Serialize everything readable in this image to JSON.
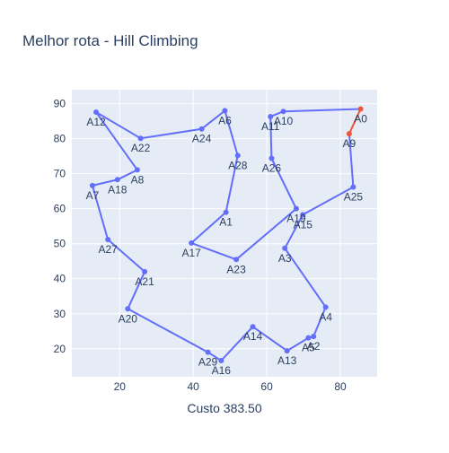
{
  "chart_data": {
    "type": "line",
    "title": "Melhor rota - Hill Climbing",
    "xlabel": "Custo 383.50",
    "ylabel": "",
    "xlim": [
      7,
      90
    ],
    "ylim": [
      12,
      94
    ],
    "x_ticks": [
      20,
      40,
      60,
      80
    ],
    "y_ticks": [
      20,
      30,
      40,
      50,
      60,
      70,
      80,
      90
    ],
    "grid": true,
    "colors": {
      "route": "#636efa",
      "closing_edge": "#ef553b",
      "plot_bg": "#e5ecf6",
      "grid": "#ffffff",
      "text": "#2a3f5f"
    },
    "points": [
      {
        "label": "A0",
        "x": 85.5,
        "y": 88.5
      },
      {
        "label": "A10",
        "x": 64.5,
        "y": 87.8
      },
      {
        "label": "A11",
        "x": 61.0,
        "y": 86.3
      },
      {
        "label": "A26",
        "x": 61.3,
        "y": 74.4
      },
      {
        "label": "A19",
        "x": 68.0,
        "y": 60.0
      },
      {
        "label": "A23",
        "x": 51.7,
        "y": 45.5
      },
      {
        "label": "A17",
        "x": 39.5,
        "y": 50.2
      },
      {
        "label": "A1",
        "x": 48.9,
        "y": 59.0
      },
      {
        "label": "A28",
        "x": 52.1,
        "y": 75.2
      },
      {
        "label": "A6",
        "x": 48.6,
        "y": 88.0
      },
      {
        "label": "A24",
        "x": 42.3,
        "y": 82.8
      },
      {
        "label": "A22",
        "x": 25.7,
        "y": 80.1
      },
      {
        "label": "A12",
        "x": 13.6,
        "y": 87.6
      },
      {
        "label": "A8",
        "x": 24.8,
        "y": 71.1
      },
      {
        "label": "A18",
        "x": 19.4,
        "y": 68.3
      },
      {
        "label": "A7",
        "x": 12.6,
        "y": 66.6
      },
      {
        "label": "A27",
        "x": 16.8,
        "y": 51.2
      },
      {
        "label": "A21",
        "x": 26.8,
        "y": 42.0
      },
      {
        "label": "A20",
        "x": 22.2,
        "y": 31.4
      },
      {
        "label": "A29",
        "x": 44.0,
        "y": 19.0
      },
      {
        "label": "A16",
        "x": 47.6,
        "y": 16.6
      },
      {
        "label": "A14",
        "x": 56.2,
        "y": 26.3
      },
      {
        "label": "A13",
        "x": 65.5,
        "y": 19.4
      },
      {
        "label": "A5",
        "x": 71.3,
        "y": 23.1
      },
      {
        "label": "A2",
        "x": 72.7,
        "y": 23.5
      },
      {
        "label": "A4",
        "x": 76.0,
        "y": 31.9
      },
      {
        "label": "A3",
        "x": 64.9,
        "y": 48.7
      },
      {
        "label": "A15",
        "x": 69.8,
        "y": 58.3
      },
      {
        "label": "A25",
        "x": 83.5,
        "y": 66.2
      },
      {
        "label": "A9",
        "x": 82.4,
        "y": 81.4
      }
    ],
    "closing_edge": [
      "A9",
      "A0"
    ]
  }
}
